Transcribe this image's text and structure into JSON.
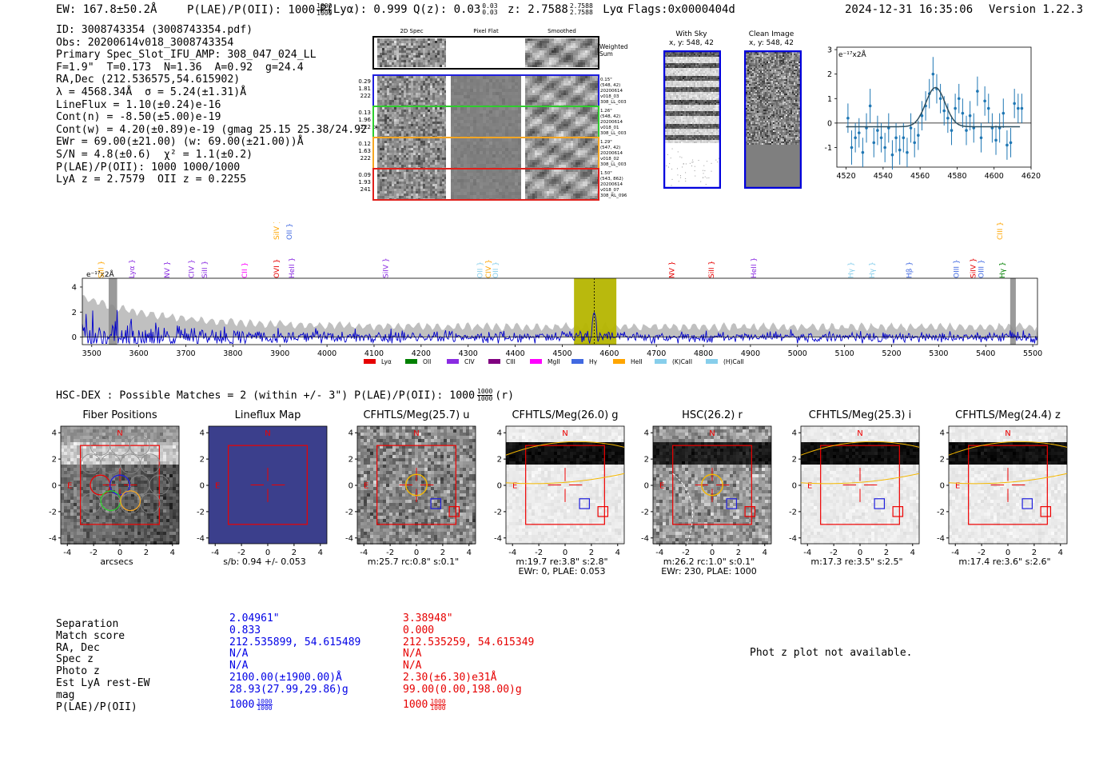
{
  "header": {
    "ew": "EW: 167.8±50.2Å",
    "plae_label": "P(LAE)/P(OII): 1000",
    "plae_sup": "1000",
    "plae_sub": "1000",
    "plya": "P(Lyα): 0.999",
    "qz_label": "Q(z): 0.03",
    "qz_sup": "0.03",
    "qz_sub": "0.03",
    "z_label": "z: 2.7588",
    "z_sup": "2.7588",
    "z_sub": "2.7588",
    "line": "Lyα",
    "flags": "Flags:0x0000404d",
    "timestamp": "2024-12-31 16:35:06",
    "version": "Version 1.22.3"
  },
  "info_lines": [
    "ID: 3008743354 (3008743354.pdf)",
    "Obs: 20200614v018_3008743354",
    "Primary Spec_Slot_IFU_AMP: 308_047_024_LL",
    "F=1.9\"  T=0.173  N=1.36  A=0.92  g=24.4",
    "RA,Dec (212.536575,54.615902)",
    "λ = 4568.34Å  σ = 5.24(±1.31)Å",
    "LineFlux = 1.10(±0.24)e-16",
    "Cont(n) = -8.50(±5.00)e-19",
    "Cont(w) = 4.20(±0.89)e-19 (gmag 25.15 25.38/24.92 *)",
    "EWr = 69.00(±21.00) (w: 69.00(±21.00))Å",
    "S/N = 4.8(±0.6)  χ² = 1.1(±0.2)",
    "P(LAE)/P(OII): 1000 1000/1000",
    "LyA z = 2.7579  OII z = 0.2255"
  ],
  "spec2d": {
    "columns": [
      "2D Spec",
      "Pixel Flat",
      "Smoothed"
    ],
    "weighted_label": "Weighted Sum",
    "rows": [
      {
        "vals": [
          "0.29",
          "1.81",
          "222"
        ],
        "stamp": "0.15\"\n(548, 42)\n20200614\nv018_03\n308_LL_003",
        "color": "#1f1fdd"
      },
      {
        "vals": [
          "0.13",
          "1.96",
          "222"
        ],
        "stamp": "1.26\"\n(548, 42)\n20200614\nv018_01\n308_LL_003",
        "color": "#2ecc2e"
      },
      {
        "vals": [
          "0.12",
          "1.63",
          "222"
        ],
        "stamp": "1.29\"\n(547, 42)\n20200614\nv018_02\n308_LL_003",
        "color": "#f5a623"
      },
      {
        "vals": [
          "0.09",
          "1.93",
          "241"
        ],
        "stamp": "1.50\"\n(543, 862)\n20200614\nv018_07\n308_RL_096",
        "color": "#e0201b"
      }
    ]
  },
  "with_sky": {
    "title": "With Sky",
    "coords": "x, y: 548, 42"
  },
  "clean_image": {
    "title": "Clean Image",
    "coords": "x, y: 548, 42"
  },
  "line_fit": {
    "ylabel": "e⁻¹⁷x2Å",
    "xticks": [
      "4520",
      "4540",
      "4560",
      "4580",
      "4600",
      "4620"
    ],
    "yticks": [
      "3",
      "2",
      "1",
      "0",
      "-1"
    ]
  },
  "full_spec": {
    "ylabel": "e⁻¹⁷x2Å",
    "xticks": [
      "3500",
      "3600",
      "3700",
      "3800",
      "3900",
      "4000",
      "4100",
      "4200",
      "4300",
      "4400",
      "4500",
      "4600",
      "4700",
      "4800",
      "4900",
      "5000",
      "5100",
      "5200",
      "5300",
      "5400",
      "5500"
    ],
    "yticks": [
      "4",
      "2",
      "0"
    ],
    "legend": [
      {
        "name": "Lyα",
        "color": "#e60000"
      },
      {
        "name": "OII",
        "color": "#008000"
      },
      {
        "name": "CIV",
        "color": "#8a2be2"
      },
      {
        "name": "CIII",
        "color": "#800080"
      },
      {
        "name": "MgII",
        "color": "#ff00ff"
      },
      {
        "name": "Hγ",
        "color": "#4169e1"
      },
      {
        "name": "HeII",
        "color": "#ffa500"
      },
      {
        "name": "(K)CaII",
        "color": "#87ceeb"
      },
      {
        "name": "(H)CaII",
        "color": "#87ceeb"
      }
    ],
    "lines": [
      {
        "name": "SiII",
        "x": 3520,
        "color": "#ffa500",
        "high": false
      },
      {
        "name": "Lyα",
        "x": 3585,
        "color": "#8a2be2",
        "high": false
      },
      {
        "name": "NV",
        "x": 3660,
        "color": "#8a2be2",
        "high": false
      },
      {
        "name": "CIV",
        "x": 3712,
        "color": "#8a2be2",
        "high": false
      },
      {
        "name": "SiII",
        "x": 3740,
        "color": "#8a2be2",
        "high": false
      },
      {
        "name": "CII",
        "x": 3825,
        "color": "#ff00ff",
        "high": false
      },
      {
        "name": "SiIV",
        "x": 3893,
        "color": "#ffa500",
        "high": true
      },
      {
        "name": "OVI",
        "x": 3893,
        "color": "#e60000",
        "high": false
      },
      {
        "name": "OII",
        "x": 3920,
        "color": "#4169e1",
        "high": true
      },
      {
        "name": "HeII",
        "x": 3925,
        "color": "#8a2be2",
        "high": false
      },
      {
        "name": "SiIV",
        "x": 4125,
        "color": "#8a2be2",
        "high": false
      },
      {
        "name": "OII",
        "x": 4325,
        "color": "#87ceeb",
        "high": false
      },
      {
        "name": "CIV",
        "x": 4343,
        "color": "#ffa500",
        "high": false
      },
      {
        "name": "OII",
        "x": 4358,
        "color": "#87ceeb",
        "high": false
      },
      {
        "name": "NV",
        "x": 4733,
        "color": "#e60000",
        "high": false
      },
      {
        "name": "SiII",
        "x": 4817,
        "color": "#e60000",
        "high": false
      },
      {
        "name": "HeII",
        "x": 4907,
        "color": "#8a2be2",
        "high": false
      },
      {
        "name": "Hγ",
        "x": 5113,
        "color": "#87ceeb",
        "high": false
      },
      {
        "name": "Hγ",
        "x": 5158,
        "color": "#87ceeb",
        "high": false
      },
      {
        "name": "Hβ",
        "x": 5237,
        "color": "#4169e1",
        "high": false
      },
      {
        "name": "OIII",
        "x": 5338,
        "color": "#4169e1",
        "high": false
      },
      {
        "name": "SiIV",
        "x": 5373,
        "color": "#e60000",
        "high": false
      },
      {
        "name": "OIII",
        "x": 5390,
        "color": "#4169e1",
        "high": false
      },
      {
        "name": "CIII",
        "x": 5430,
        "color": "#ffa500",
        "high": true
      },
      {
        "name": "Hγ",
        "x": 5435,
        "color": "#008000",
        "high": false
      }
    ]
  },
  "hsc": {
    "title": "HSC-DEX : Possible Matches = 2 (within +/- 3\")  P(LAE)/P(OII): 1000",
    "title_sup": "1000",
    "title_sub": "1000",
    "title_tail": "(r)"
  },
  "cutouts": [
    {
      "title": "Fiber Positions",
      "cap1": "arcsecs",
      "cap2": ""
    },
    {
      "title": "Lineflux Map",
      "cap1": "s/b: 0.94 +/- 0.053",
      "cap2": ""
    },
    {
      "title": "CFHTLS/Meg(25.7) u",
      "cap1": "m:25.7 rc:0.8\"  s:0.1\"",
      "cap2": ""
    },
    {
      "title": "CFHTLS/Meg(26.0) g",
      "cap1": "m:19.7  re:3.8\"  s:2.8\"",
      "cap2": "EWr: 0, PLAE: 0.053"
    },
    {
      "title": "HSC(26.2) r",
      "cap1": "m:26.2 rc:1.0\"  s:0.1\"",
      "cap2": "EWr: 230, PLAE: 1000"
    },
    {
      "title": "CFHTLS/Meg(25.3) i",
      "cap1": "m:17.3  re:3.5\"  s:2.5\"",
      "cap2": ""
    },
    {
      "title": "CFHTLS/Meg(24.4) z",
      "cap1": "m:17.4  re:3.6\"  s:2.6\"",
      "cap2": ""
    }
  ],
  "cutout_axis": {
    "ticks_x": [
      "-4",
      "-2",
      "0",
      "2",
      "4"
    ],
    "ticks_y": [
      "4",
      "2",
      "0",
      "-2",
      "-4"
    ],
    "north": "N",
    "east": "E"
  },
  "matches": {
    "labels": [
      "Separation",
      "Match score",
      "RA, Dec",
      "Spec z",
      "Photo z",
      "Est LyA rest-EW",
      "mag",
      "P(LAE)/P(OII)"
    ],
    "col1": [
      "2.04961\"",
      "0.833",
      "212.535899, 54.615489",
      "N/A",
      "N/A",
      "2100.00(±1900.00)Å",
      "28.93(27.99,29.86)g",
      "1000"
    ],
    "col2": [
      "3.38948\"",
      "0.000",
      "212.535259, 54.615349",
      "N/A",
      "N/A",
      "2.30(±6.30)e31Å",
      "99.00(0.00,198.00)g",
      "1000"
    ],
    "plae_frac_sup": "1000",
    "plae_frac_sub": "1000",
    "photz_note": "Phot z plot not available."
  },
  "chart_data": [
    {
      "type": "scatter",
      "title": "",
      "xlabel": "",
      "ylabel": "e⁻¹⁷x2Å",
      "xlim": [
        4515,
        4620
      ],
      "ylim": [
        -1.8,
        3.1
      ],
      "points_x": [
        4521,
        4523,
        4525,
        4527,
        4529,
        4531,
        4533,
        4535,
        4537,
        4539,
        4541,
        4543,
        4545,
        4547,
        4549,
        4551,
        4553,
        4555,
        4557,
        4559,
        4561,
        4563,
        4565,
        4567,
        4569,
        4571,
        4573,
        4575,
        4577,
        4579,
        4581,
        4583,
        4585,
        4587,
        4589,
        4591,
        4593,
        4595,
        4597,
        4599,
        4601,
        4603,
        4605,
        4607,
        4609,
        4611,
        4613,
        4615
      ],
      "points_y": [
        0.2,
        -1.0,
        -0.6,
        -0.4,
        -1.2,
        -0.2,
        0.7,
        -0.8,
        -0.3,
        -0.6,
        -1.0,
        -0.2,
        -1.3,
        -0.6,
        -1.1,
        -0.6,
        -1.2,
        -0.2,
        -0.8,
        -0.5,
        0.3,
        0.7,
        1.2,
        2.0,
        1.4,
        1.0,
        0.5,
        0.2,
        -0.3,
        0.6,
        1.0,
        0.4,
        -0.3,
        0.3,
        -0.2,
        1.3,
        -0.6,
        0.9,
        0.6,
        -0.2,
        -0.7,
        -0.2,
        0.4,
        -0.9,
        -0.8,
        0.8,
        0.6,
        0.6
      ],
      "errors": [
        0.6,
        0.7,
        0.6,
        0.6,
        0.6,
        0.6,
        0.7,
        0.6,
        0.6,
        0.6,
        0.6,
        0.6,
        0.6,
        0.6,
        0.6,
        0.6,
        0.6,
        0.6,
        0.6,
        0.6,
        0.6,
        0.6,
        0.6,
        0.7,
        0.6,
        0.6,
        0.6,
        0.6,
        0.6,
        0.6,
        0.6,
        0.6,
        0.6,
        0.6,
        0.6,
        0.6,
        0.6,
        0.6,
        0.6,
        0.6,
        0.6,
        0.6,
        0.6,
        0.6,
        0.6,
        0.6,
        0.6,
        0.6
      ],
      "fit_model": {
        "center": 4568.3,
        "sigma": 5.24,
        "amplitude": 1.6,
        "continuum": -0.15
      }
    },
    {
      "type": "line",
      "title": "",
      "xlabel": "",
      "ylabel": "e⁻¹⁷x2Å",
      "xlim": [
        3480,
        5510
      ],
      "ylim": [
        -0.6,
        4.7
      ],
      "highlight_band": [
        4525,
        4615
      ],
      "marker_line": 4568,
      "grey_bands": [
        [
          3536,
          3554
        ],
        [
          5452,
          5464
        ]
      ],
      "series": [
        {
          "color": "#0000cc"
        }
      ]
    }
  ]
}
